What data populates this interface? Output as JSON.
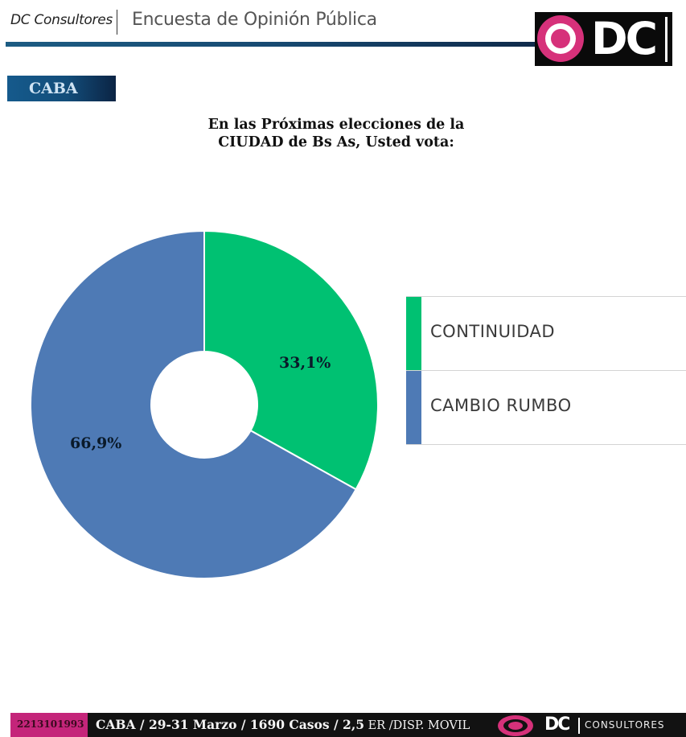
{
  "header": {
    "brand": "DC Consultores",
    "title": "Encuesta de Opinión Pública",
    "logo_text": "DC"
  },
  "region_badge": "CABA",
  "question": {
    "line1": "En las Próximas elecciones de la",
    "line2": "CIUDAD de Bs As, Usted vota:"
  },
  "colors": {
    "continuidad": "#00c172",
    "cambio_rumbo": "#4e7ab5",
    "brand_pink": "#d6317a",
    "header_rule": "#174a72"
  },
  "chart_data": {
    "type": "pie",
    "subtype": "donut",
    "title": "En las Próximas elecciones de la CIUDAD de Bs As, Usted vota:",
    "categories": [
      "CONTINUIDAD",
      "CAMBIO RUMBO"
    ],
    "values": [
      33.1,
      66.9
    ],
    "labels": [
      "33,1%",
      "66,9%"
    ],
    "colors": [
      "#00c172",
      "#4e7ab5"
    ],
    "start_angle": "12 o'clock, clockwise",
    "legend_position": "right"
  },
  "legend": {
    "items": [
      {
        "label": "CONTINUIDAD",
        "color": "#00c172"
      },
      {
        "label": "CAMBIO RUMBO",
        "color": "#4e7ab5"
      }
    ]
  },
  "footer": {
    "phone": "2213101993",
    "info_main": "CABA / 29-31 Marzo / 1690 Casos / 2,5",
    "info_tail": " ER /DISP. MOVIL",
    "logo_dc": "DC",
    "logo_consultores": "CONSULTORES"
  }
}
